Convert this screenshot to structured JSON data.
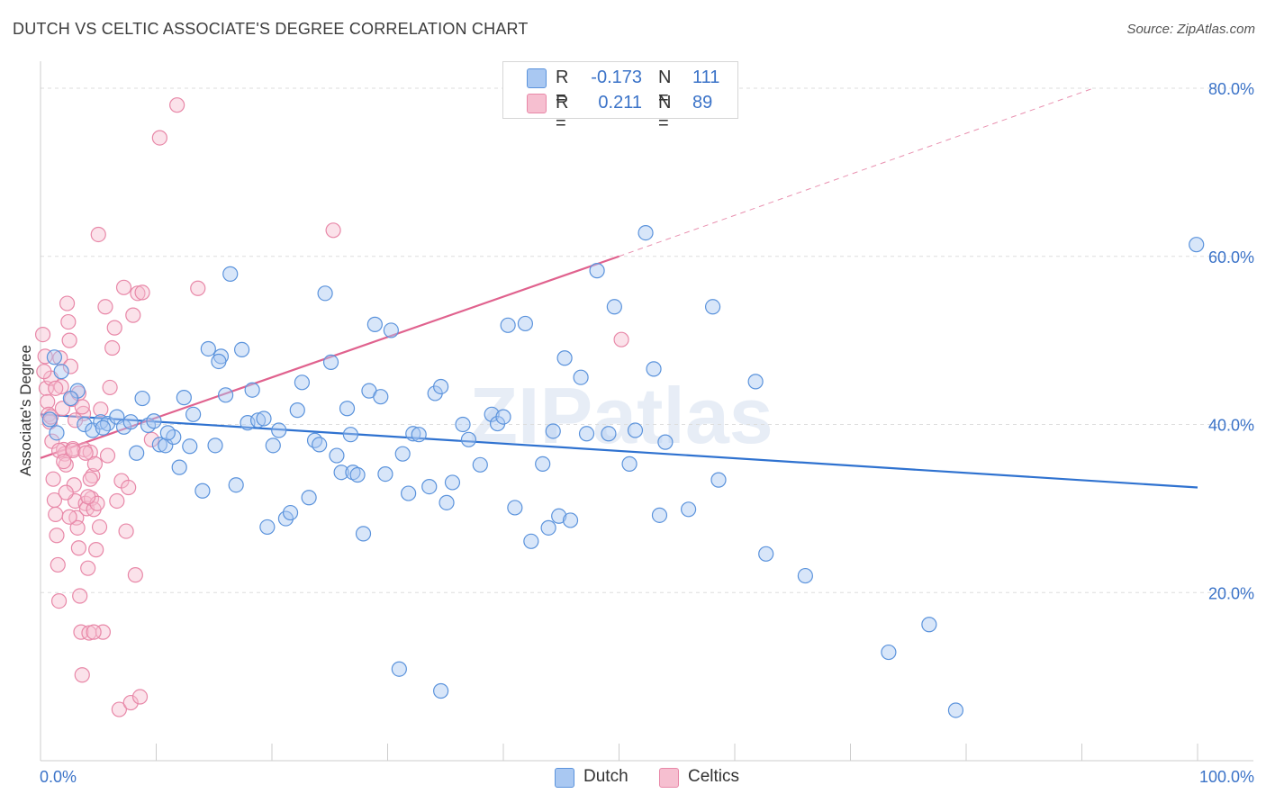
{
  "title": "DUTCH VS CELTIC ASSOCIATE'S DEGREE CORRELATION CHART",
  "source": "Source: ZipAtlas.com",
  "watermark": "ZIPatlas",
  "legend": {
    "dutch": {
      "r_label": "R =",
      "r_value": "-0.173",
      "n_label": "N =",
      "n_value": "111"
    },
    "celtics": {
      "r_label": "R =",
      "r_value": "0.211",
      "n_label": "N =",
      "n_value": "89"
    }
  },
  "bottom_legend": {
    "dutch": "Dutch",
    "celtics": "Celtics"
  },
  "colors": {
    "dutch_fill": "#a9c8f2",
    "dutch_stroke": "#5b93dc",
    "dutch_line": "#2f72d0",
    "celtics_fill": "#f6bfd0",
    "celtics_stroke": "#e888a8",
    "celtics_line": "#e0628e",
    "axis_text": "#3b73c8",
    "grid": "#dddddd"
  },
  "chart_data": {
    "type": "scatter",
    "title": "DUTCH VS CELTIC ASSOCIATE'S DEGREE CORRELATION CHART",
    "xlabel": "",
    "ylabel": "Associate's Degree",
    "xlim": [
      0,
      100
    ],
    "ylim": [
      0,
      82
    ],
    "x_tick_labels": [
      "0.0%",
      "100.0%"
    ],
    "y_ticks": [
      20,
      40,
      60,
      80
    ],
    "y_tick_labels": [
      "20.0%",
      "40.0%",
      "60.0%",
      "80.0%"
    ],
    "grid": true,
    "legend_position": "top-center",
    "series": [
      {
        "name": "Dutch",
        "r": -0.173,
        "n": 111,
        "trend": {
          "x": [
            0,
            100
          ],
          "y": [
            41.2,
            32.5
          ]
        },
        "points": [
          [
            1.2,
            48.0
          ],
          [
            1.8,
            46.3
          ],
          [
            3.2,
            44.0
          ],
          [
            3.8,
            40.0
          ],
          [
            4.5,
            39.3
          ],
          [
            5.2,
            40.3
          ],
          [
            5.8,
            40.1
          ],
          [
            6.6,
            40.9
          ],
          [
            7.2,
            39.7
          ],
          [
            7.8,
            40.3
          ],
          [
            8.3,
            36.6
          ],
          [
            8.8,
            43.1
          ],
          [
            9.3,
            39.9
          ],
          [
            9.8,
            40.4
          ],
          [
            10.3,
            37.6
          ],
          [
            10.8,
            37.5
          ],
          [
            11.5,
            38.5
          ],
          [
            12.0,
            34.9
          ],
          [
            12.4,
            43.2
          ],
          [
            12.9,
            37.4
          ],
          [
            13.2,
            41.2
          ],
          [
            14.0,
            32.1
          ],
          [
            14.5,
            49.0
          ],
          [
            15.1,
            37.5
          ],
          [
            15.6,
            48.1
          ],
          [
            16.0,
            43.5
          ],
          [
            16.4,
            57.9
          ],
          [
            16.9,
            32.8
          ],
          [
            17.4,
            48.9
          ],
          [
            17.9,
            40.2
          ],
          [
            18.3,
            44.1
          ],
          [
            18.8,
            40.5
          ],
          [
            19.3,
            40.7
          ],
          [
            19.6,
            27.8
          ],
          [
            20.1,
            37.5
          ],
          [
            20.6,
            39.3
          ],
          [
            21.2,
            28.8
          ],
          [
            21.6,
            29.5
          ],
          [
            22.2,
            41.7
          ],
          [
            22.6,
            45.0
          ],
          [
            23.2,
            31.3
          ],
          [
            23.7,
            38.1
          ],
          [
            24.1,
            37.6
          ],
          [
            24.6,
            55.6
          ],
          [
            25.1,
            47.4
          ],
          [
            25.6,
            36.3
          ],
          [
            26.0,
            34.3
          ],
          [
            26.5,
            41.9
          ],
          [
            27.0,
            34.3
          ],
          [
            27.4,
            34.0
          ],
          [
            27.9,
            27.0
          ],
          [
            28.4,
            44.0
          ],
          [
            28.9,
            51.9
          ],
          [
            29.4,
            43.3
          ],
          [
            29.8,
            34.1
          ],
          [
            30.3,
            51.2
          ],
          [
            31.3,
            36.5
          ],
          [
            31.8,
            31.8
          ],
          [
            32.2,
            38.9
          ],
          [
            32.7,
            38.8
          ],
          [
            33.6,
            32.6
          ],
          [
            34.1,
            43.7
          ],
          [
            34.6,
            44.5
          ],
          [
            35.1,
            30.7
          ],
          [
            35.6,
            33.1
          ],
          [
            36.5,
            40.0
          ],
          [
            37.0,
            38.2
          ],
          [
            38.0,
            35.2
          ],
          [
            39.0,
            41.2
          ],
          [
            39.5,
            40.1
          ],
          [
            40.0,
            40.9
          ],
          [
            40.4,
            51.8
          ],
          [
            41.0,
            30.1
          ],
          [
            41.9,
            52.0
          ],
          [
            42.4,
            26.1
          ],
          [
            43.4,
            35.3
          ],
          [
            43.9,
            27.7
          ],
          [
            44.3,
            39.2
          ],
          [
            44.8,
            29.1
          ],
          [
            45.3,
            47.9
          ],
          [
            45.8,
            28.6
          ],
          [
            46.7,
            45.6
          ],
          [
            47.2,
            38.9
          ],
          [
            48.1,
            58.3
          ],
          [
            49.1,
            38.9
          ],
          [
            49.6,
            54.0
          ],
          [
            50.9,
            35.3
          ],
          [
            51.4,
            39.3
          ],
          [
            52.3,
            62.8
          ],
          [
            53.0,
            46.6
          ],
          [
            53.5,
            29.2
          ],
          [
            54.0,
            37.9
          ],
          [
            56.0,
            29.9
          ],
          [
            58.1,
            54.0
          ],
          [
            58.6,
            33.4
          ],
          [
            61.8,
            45.1
          ],
          [
            62.7,
            24.6
          ],
          [
            66.1,
            22.0
          ],
          [
            73.3,
            12.9
          ],
          [
            76.8,
            16.2
          ],
          [
            79.1,
            6.0
          ],
          [
            99.9,
            61.4
          ],
          [
            31.0,
            10.9
          ],
          [
            34.6,
            8.3
          ],
          [
            0.8,
            40.6
          ],
          [
            1.4,
            39.0
          ],
          [
            2.6,
            43.1
          ],
          [
            5.4,
            39.6
          ],
          [
            11.0,
            39.0
          ],
          [
            15.4,
            47.5
          ],
          [
            26.8,
            38.8
          ]
        ]
      },
      {
        "name": "Celtics",
        "r": 0.211,
        "n": 89,
        "trend": {
          "x": [
            0,
            50
          ],
          "y": [
            36.0,
            60.0
          ]
        },
        "trend_extension": {
          "x": [
            50,
            91
          ],
          "y": [
            60.0,
            80.0
          ]
        },
        "points": [
          [
            0.2,
            50.7
          ],
          [
            0.4,
            48.1
          ],
          [
            0.5,
            44.3
          ],
          [
            0.6,
            42.7
          ],
          [
            0.7,
            41.2
          ],
          [
            0.8,
            40.3
          ],
          [
            0.9,
            45.5
          ],
          [
            1.0,
            38.0
          ],
          [
            1.1,
            33.5
          ],
          [
            1.2,
            31.0
          ],
          [
            1.3,
            29.3
          ],
          [
            1.4,
            26.8
          ],
          [
            1.5,
            23.3
          ],
          [
            1.6,
            19.0
          ],
          [
            1.7,
            47.9
          ],
          [
            1.8,
            44.5
          ],
          [
            1.9,
            41.9
          ],
          [
            2.0,
            37.0
          ],
          [
            2.1,
            36.5
          ],
          [
            2.2,
            35.2
          ],
          [
            2.3,
            54.4
          ],
          [
            2.4,
            52.2
          ],
          [
            2.5,
            50.0
          ],
          [
            2.6,
            46.9
          ],
          [
            2.7,
            43.0
          ],
          [
            2.8,
            37.1
          ],
          [
            2.9,
            32.8
          ],
          [
            3.0,
            30.9
          ],
          [
            3.1,
            28.9
          ],
          [
            3.2,
            27.7
          ],
          [
            3.3,
            25.3
          ],
          [
            3.4,
            19.6
          ],
          [
            3.5,
            15.3
          ],
          [
            3.6,
            10.2
          ],
          [
            3.7,
            41.3
          ],
          [
            3.8,
            37.0
          ],
          [
            3.9,
            30.6
          ],
          [
            4.0,
            30.0
          ],
          [
            4.1,
            22.9
          ],
          [
            4.2,
            15.2
          ],
          [
            4.3,
            36.7
          ],
          [
            4.4,
            31.2
          ],
          [
            4.5,
            33.9
          ],
          [
            4.6,
            29.9
          ],
          [
            4.7,
            35.3
          ],
          [
            4.8,
            25.1
          ],
          [
            4.9,
            30.6
          ],
          [
            5.0,
            62.6
          ],
          [
            5.1,
            27.8
          ],
          [
            5.2,
            41.8
          ],
          [
            5.4,
            15.3
          ],
          [
            5.6,
            54.0
          ],
          [
            5.8,
            36.3
          ],
          [
            6.0,
            44.4
          ],
          [
            6.2,
            49.1
          ],
          [
            6.4,
            51.5
          ],
          [
            6.6,
            30.9
          ],
          [
            6.8,
            6.1
          ],
          [
            7.0,
            33.3
          ],
          [
            7.2,
            56.3
          ],
          [
            7.4,
            27.3
          ],
          [
            7.6,
            32.5
          ],
          [
            7.8,
            6.9
          ],
          [
            8.0,
            53.0
          ],
          [
            8.2,
            22.1
          ],
          [
            8.4,
            55.6
          ],
          [
            8.6,
            7.6
          ],
          [
            8.8,
            55.7
          ],
          [
            9.6,
            38.2
          ],
          [
            10.3,
            74.1
          ],
          [
            11.8,
            78.0
          ],
          [
            13.6,
            56.2
          ],
          [
            25.3,
            63.1
          ],
          [
            50.2,
            50.1
          ],
          [
            0.3,
            46.3
          ],
          [
            0.9,
            40.9
          ],
          [
            1.3,
            44.3
          ],
          [
            1.6,
            36.9
          ],
          [
            2.0,
            35.6
          ],
          [
            2.2,
            31.9
          ],
          [
            2.5,
            29.0
          ],
          [
            2.8,
            36.9
          ],
          [
            3.0,
            40.5
          ],
          [
            3.3,
            43.7
          ],
          [
            3.6,
            42.1
          ],
          [
            3.9,
            36.6
          ],
          [
            4.1,
            31.4
          ],
          [
            4.3,
            33.5
          ],
          [
            4.6,
            15.3
          ]
        ]
      }
    ]
  }
}
